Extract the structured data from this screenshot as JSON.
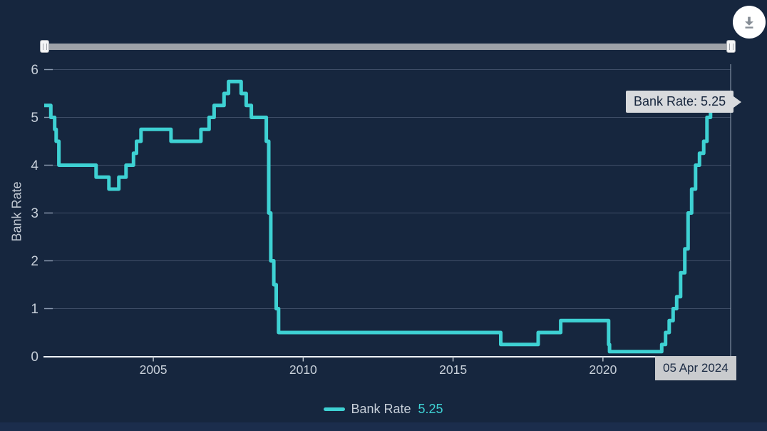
{
  "colors": {
    "background": "#16263e",
    "accent_teal": "#3ed1d3",
    "grid": "#47566f",
    "axis_line": "#eef1f5",
    "tick": "#8d9cb2",
    "label_text": "#c7cfd9",
    "tooltip_bg": "#d8dadd",
    "tooltip_text": "#17263d",
    "crosshair": "#93a0b2"
  },
  "y_axis": {
    "title": "Bank Rate"
  },
  "tooltip": {
    "text": "Bank Rate: 5.25"
  },
  "crosshair": {
    "date_label": "05 Apr 2024"
  },
  "legend": {
    "label": "Bank Rate",
    "value": "5.25"
  },
  "chart_data": {
    "type": "line",
    "step": true,
    "title": "",
    "xlabel": "",
    "ylabel": "Bank Rate",
    "grid": "horizontal",
    "legend_position": "bottom",
    "ylim": [
      0,
      6
    ],
    "y_ticks": [
      0,
      1,
      2,
      3,
      4,
      5,
      6
    ],
    "xlim_years": [
      2001.36,
      2024.26
    ],
    "x_ticks": [
      2005,
      2010,
      2015,
      2020
    ],
    "x_tick_labels": [
      "2005",
      "2010",
      "2015",
      "2020"
    ],
    "series": [
      {
        "name": "Bank Rate",
        "color": "#3ed1d3",
        "current_value": 5.25,
        "points": [
          {
            "date": "May 2001",
            "year": 2001.36,
            "rate": 5.25
          },
          {
            "date": "Aug 2001",
            "year": 2001.58,
            "rate": 5.0
          },
          {
            "date": "Sep 2001",
            "year": 2001.71,
            "rate": 4.75
          },
          {
            "date": "Oct 2001",
            "year": 2001.76,
            "rate": 4.5
          },
          {
            "date": "Nov 2001",
            "year": 2001.85,
            "rate": 4.0
          },
          {
            "date": "Feb 2003",
            "year": 2003.09,
            "rate": 3.75
          },
          {
            "date": "Jul 2003",
            "year": 2003.52,
            "rate": 3.5
          },
          {
            "date": "Nov 2003",
            "year": 2003.85,
            "rate": 3.75
          },
          {
            "date": "Feb 2004",
            "year": 2004.09,
            "rate": 4.0
          },
          {
            "date": "May 2004",
            "year": 2004.34,
            "rate": 4.25
          },
          {
            "date": "Jun 2004",
            "year": 2004.44,
            "rate": 4.5
          },
          {
            "date": "Aug 2004",
            "year": 2004.59,
            "rate": 4.75
          },
          {
            "date": "Aug 2005",
            "year": 2005.59,
            "rate": 4.5
          },
          {
            "date": "Aug 2006",
            "year": 2006.59,
            "rate": 4.75
          },
          {
            "date": "Nov 2006",
            "year": 2006.86,
            "rate": 5.0
          },
          {
            "date": "Jan 2007",
            "year": 2007.03,
            "rate": 5.25
          },
          {
            "date": "May 2007",
            "year": 2007.36,
            "rate": 5.5
          },
          {
            "date": "Jul 2007",
            "year": 2007.51,
            "rate": 5.75
          },
          {
            "date": "Dec 2007",
            "year": 2007.93,
            "rate": 5.5
          },
          {
            "date": "Feb 2008",
            "year": 2008.1,
            "rate": 5.25
          },
          {
            "date": "Apr 2008",
            "year": 2008.27,
            "rate": 5.0
          },
          {
            "date": "Oct 2008",
            "year": 2008.77,
            "rate": 4.5
          },
          {
            "date": "Nov 2008",
            "year": 2008.85,
            "rate": 3.0
          },
          {
            "date": "Dec 2008",
            "year": 2008.92,
            "rate": 2.0
          },
          {
            "date": "Jan 2009",
            "year": 2009.02,
            "rate": 1.5
          },
          {
            "date": "Feb 2009",
            "year": 2009.1,
            "rate": 1.0
          },
          {
            "date": "Mar 2009",
            "year": 2009.18,
            "rate": 0.5
          },
          {
            "date": "Aug 2016",
            "year": 2016.59,
            "rate": 0.25
          },
          {
            "date": "Nov 2017",
            "year": 2017.84,
            "rate": 0.5
          },
          {
            "date": "Aug 2018",
            "year": 2018.59,
            "rate": 0.75
          },
          {
            "date": "Mar 2020",
            "year": 2020.19,
            "rate": 0.25
          },
          {
            "date": "Mar 2020",
            "year": 2020.22,
            "rate": 0.1
          },
          {
            "date": "Dec 2021",
            "year": 2021.96,
            "rate": 0.25
          },
          {
            "date": "Feb 2022",
            "year": 2022.09,
            "rate": 0.5
          },
          {
            "date": "Mar 2022",
            "year": 2022.21,
            "rate": 0.75
          },
          {
            "date": "May 2022",
            "year": 2022.34,
            "rate": 1.0
          },
          {
            "date": "Jun 2022",
            "year": 2022.46,
            "rate": 1.25
          },
          {
            "date": "Aug 2022",
            "year": 2022.59,
            "rate": 1.75
          },
          {
            "date": "Sep 2022",
            "year": 2022.73,
            "rate": 2.25
          },
          {
            "date": "Nov 2022",
            "year": 2022.84,
            "rate": 3.0
          },
          {
            "date": "Dec 2022",
            "year": 2022.96,
            "rate": 3.5
          },
          {
            "date": "Feb 2023",
            "year": 2023.09,
            "rate": 4.0
          },
          {
            "date": "Mar 2023",
            "year": 2023.22,
            "rate": 4.25
          },
          {
            "date": "May 2023",
            "year": 2023.36,
            "rate": 4.5
          },
          {
            "date": "Jun 2023",
            "year": 2023.47,
            "rate": 5.0
          },
          {
            "date": "Aug 2023",
            "year": 2023.59,
            "rate": 5.25
          },
          {
            "date": "05 Apr 2024",
            "year": 2024.26,
            "rate": 5.25
          }
        ]
      }
    ]
  }
}
